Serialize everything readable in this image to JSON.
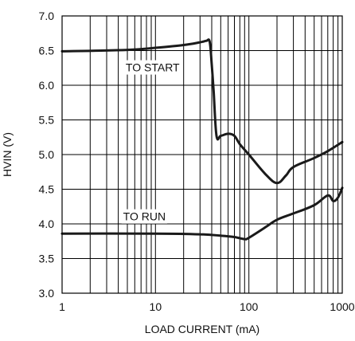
{
  "chart_data": {
    "type": "line",
    "xlabel": "LOAD CURRENT (mA)",
    "ylabel": "HVIN (V)",
    "xscale": "log",
    "xlim": [
      1,
      1000
    ],
    "ylim": [
      3.0,
      7.0
    ],
    "xticks": [
      "1",
      "10",
      "100",
      "1000"
    ],
    "yticks": [
      "3.0",
      "3.5",
      "4.0",
      "4.5",
      "5.0",
      "5.5",
      "6.0",
      "6.5",
      "7.0"
    ],
    "grid": true,
    "series": [
      {
        "name": "TO START",
        "x": [
          1,
          5,
          10,
          20,
          30,
          35,
          38,
          40,
          42,
          45,
          50,
          60,
          70,
          80,
          100,
          150,
          200,
          250,
          300,
          500,
          700,
          1000
        ],
        "y": [
          6.49,
          6.51,
          6.54,
          6.58,
          6.62,
          6.64,
          6.63,
          6.3,
          5.9,
          5.27,
          5.27,
          5.3,
          5.27,
          5.15,
          5.0,
          4.72,
          4.59,
          4.7,
          4.82,
          4.95,
          5.05,
          5.18
        ]
      },
      {
        "name": "TO RUN",
        "x": [
          1,
          10,
          30,
          50,
          70,
          90,
          100,
          150,
          200,
          300,
          500,
          700,
          800,
          900,
          1000
        ],
        "y": [
          3.86,
          3.86,
          3.85,
          3.83,
          3.81,
          3.78,
          3.8,
          3.95,
          4.06,
          4.15,
          4.27,
          4.41,
          4.33,
          4.38,
          4.52
        ]
      }
    ]
  }
}
